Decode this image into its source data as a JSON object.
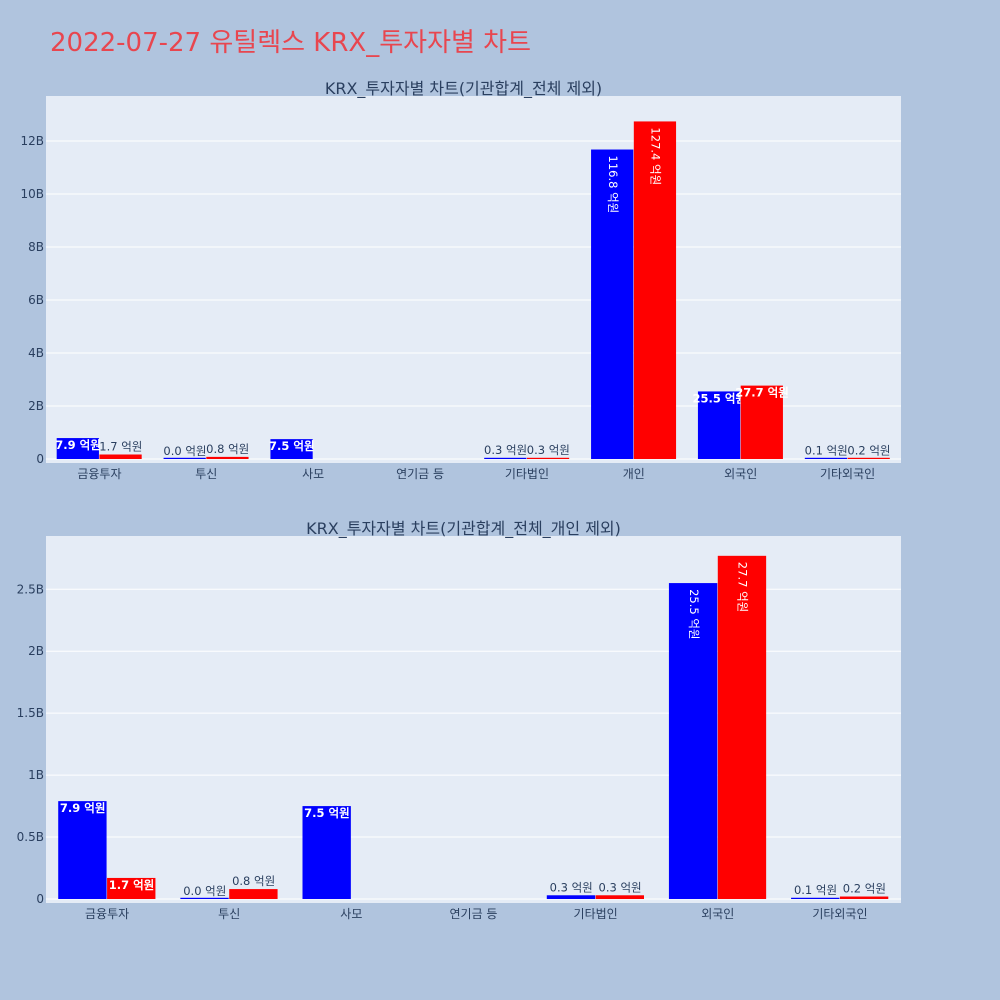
{
  "title": "2022-07-27 유틸렉스 KRX_투자자별 차트",
  "colors": {
    "background": "#b0c4de",
    "plot_bg": "#e5ecf6",
    "title": "#e8464f",
    "series_a": "#0000ff",
    "series_b": "#ff0000",
    "text": "#2a3f5f"
  },
  "chart_data": [
    {
      "type": "bar",
      "title": "KRX_투자자별 차트(기관합계_전체 제외)",
      "categories": [
        "금융투자",
        "투신",
        "사모",
        "연기금 등",
        "기타법인",
        "개인",
        "외국인",
        "기타외국인"
      ],
      "y_ticks": [
        "0",
        "2B",
        "4B",
        "6B",
        "8B",
        "10B",
        "12B"
      ],
      "ylim": [
        0,
        13700000000
      ],
      "grid": true,
      "series": [
        {
          "values": [
            790000000,
            0,
            750000000,
            null,
            30000000,
            11680000000,
            2550000000,
            10000000
          ],
          "labels": [
            "7.9 억원",
            "0.0 억원",
            "7.5 억원",
            "",
            "0.3 억원",
            "116.8 억원",
            "25.5 억원",
            "0.1 억원"
          ]
        },
        {
          "values": [
            170000000,
            80000000,
            null,
            null,
            30000000,
            12740000000,
            2770000000,
            20000000
          ],
          "labels": [
            "1.7 억원",
            "0.8 억원",
            "",
            "",
            "0.3 억원",
            "127.4 억원",
            "27.7 억원",
            "0.2 억원"
          ]
        }
      ]
    },
    {
      "type": "bar",
      "title": "KRX_투자자별 차트(기관합계_전체_개인 제외)",
      "categories": [
        "금융투자",
        "투신",
        "사모",
        "연기금 등",
        "기타법인",
        "외국인",
        "기타외국인"
      ],
      "y_ticks": [
        "0",
        "0.5B",
        "1B",
        "1.5B",
        "2B",
        "2.5B"
      ],
      "ylim": [
        0,
        2930000000
      ],
      "grid": true,
      "series": [
        {
          "values": [
            790000000,
            0,
            750000000,
            null,
            30000000,
            2550000000,
            10000000
          ],
          "labels": [
            "7.9 억원",
            "0.0 억원",
            "7.5 억원",
            "",
            "0.3 억원",
            "25.5 억원",
            "0.1 억원"
          ]
        },
        {
          "values": [
            170000000,
            80000000,
            null,
            null,
            30000000,
            2770000000,
            20000000
          ],
          "labels": [
            "1.7 억원",
            "0.8 억원",
            "",
            "",
            "0.3 억원",
            "27.7 억원",
            "0.2 억원"
          ]
        }
      ]
    }
  ]
}
